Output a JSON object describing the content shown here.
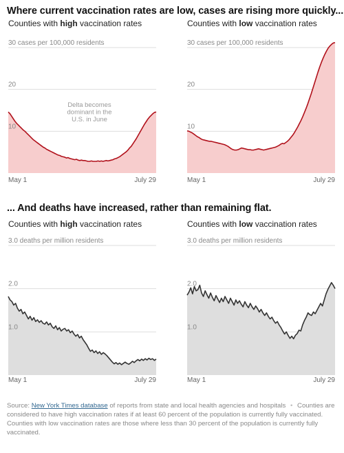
{
  "cases_section_title": "Where current vaccination rates are low, cases are rising more quickly...",
  "deaths_section_title": "... And deaths have increased, rather than remaining flat.",
  "panel_title_prefix": "Counties with ",
  "panel_title_suffix": " vaccination rates",
  "high_word": "high",
  "low_word": "low",
  "x_start_label": "May 1",
  "x_end_label": "July 29",
  "colors": {
    "cases_line": "#b0101a",
    "cases_fill": "#f7cdcd",
    "deaths_line": "#333333",
    "deaths_fill": "#dedede",
    "gridline": "#dddddd"
  },
  "chart_data": [
    {
      "type": "area",
      "metric": "cases",
      "vaccination_group": "high",
      "unit_label": "30 cases per 100,000 residents",
      "ylim": [
        0,
        30
      ],
      "yticks": [
        "20",
        "10"
      ],
      "yticks_values": [
        20,
        10
      ],
      "annotation": [
        "Delta becomes",
        "dominant in the",
        "U.S. in June"
      ],
      "x_start": "May 1",
      "x_end": "July 29",
      "values": [
        14.6,
        14.2,
        13.6,
        13.0,
        12.4,
        11.9,
        11.5,
        11.1,
        10.7,
        10.3,
        10.0,
        9.6,
        9.2,
        8.8,
        8.4,
        8.0,
        7.7,
        7.4,
        7.1,
        6.8,
        6.5,
        6.2,
        6.0,
        5.7,
        5.5,
        5.3,
        5.1,
        4.9,
        4.7,
        4.5,
        4.3,
        4.2,
        4.0,
        3.9,
        3.8,
        3.6,
        3.7,
        3.5,
        3.4,
        3.3,
        3.2,
        3.3,
        3.1,
        3.0,
        3.1,
        3.0,
        3.0,
        2.9,
        2.8,
        2.8,
        2.9,
        2.8,
        2.8,
        2.8,
        2.9,
        2.8,
        2.9,
        2.8,
        2.9,
        3.0,
        2.9,
        3.0,
        3.1,
        3.2,
        3.4,
        3.5,
        3.7,
        3.9,
        4.2,
        4.5,
        4.8,
        5.1,
        5.5,
        6.0,
        6.4,
        7.0,
        7.6,
        8.2,
        8.9,
        9.6,
        10.3,
        11.0,
        11.7,
        12.3,
        12.9,
        13.4,
        13.8,
        14.2,
        14.5,
        14.6
      ]
    },
    {
      "type": "area",
      "metric": "cases",
      "vaccination_group": "low",
      "unit_label": "30 cases per 100,000 residents",
      "ylim": [
        0,
        30
      ],
      "yticks": [
        "20",
        "10"
      ],
      "yticks_values": [
        20,
        10
      ],
      "x_start": "May 1",
      "x_end": "July 29",
      "values": [
        10.1,
        10.0,
        9.8,
        9.6,
        9.3,
        9.0,
        8.7,
        8.5,
        8.2,
        8.0,
        7.9,
        7.8,
        7.7,
        7.6,
        7.6,
        7.5,
        7.4,
        7.3,
        7.2,
        7.1,
        7.0,
        6.9,
        6.8,
        6.6,
        6.4,
        6.1,
        5.8,
        5.6,
        5.5,
        5.5,
        5.6,
        5.8,
        6.0,
        5.9,
        5.8,
        5.7,
        5.6,
        5.6,
        5.5,
        5.5,
        5.6,
        5.7,
        5.8,
        5.7,
        5.6,
        5.5,
        5.6,
        5.7,
        5.8,
        5.9,
        6.0,
        6.1,
        6.2,
        6.4,
        6.6,
        6.9,
        7.1,
        7.0,
        7.3,
        7.6,
        8.0,
        8.5,
        9.0,
        9.6,
        10.3,
        11.0,
        11.8,
        12.6,
        13.5,
        14.5,
        15.5,
        16.6,
        17.8,
        19.0,
        20.3,
        21.6,
        22.9,
        24.2,
        25.4,
        26.5,
        27.5,
        28.4,
        29.2,
        29.9,
        30.4,
        30.8,
        31.1,
        31.2
      ]
    },
    {
      "type": "area",
      "metric": "deaths",
      "vaccination_group": "high",
      "unit_label": "3.0 deaths per million residents",
      "ylim": [
        0,
        3.0
      ],
      "yticks": [
        "2.0",
        "1.0"
      ],
      "yticks_values": [
        2.0,
        1.0
      ],
      "x_start": "May 1",
      "x_end": "July 29",
      "values": [
        1.82,
        1.74,
        1.7,
        1.62,
        1.66,
        1.55,
        1.48,
        1.52,
        1.42,
        1.46,
        1.38,
        1.3,
        1.36,
        1.27,
        1.33,
        1.24,
        1.28,
        1.22,
        1.26,
        1.2,
        1.18,
        1.23,
        1.16,
        1.2,
        1.12,
        1.08,
        1.14,
        1.05,
        1.1,
        1.02,
        1.06,
        1.08,
        1.02,
        1.05,
        0.98,
        1.02,
        0.95,
        0.9,
        0.94,
        0.86,
        0.9,
        0.82,
        0.76,
        0.7,
        0.62,
        0.55,
        0.58,
        0.52,
        0.56,
        0.5,
        0.54,
        0.48,
        0.52,
        0.49,
        0.45,
        0.4,
        0.35,
        0.3,
        0.26,
        0.29,
        0.25,
        0.28,
        0.24,
        0.27,
        0.3,
        0.27,
        0.25,
        0.28,
        0.32,
        0.29,
        0.33,
        0.36,
        0.33,
        0.37,
        0.34,
        0.38,
        0.35,
        0.39,
        0.36,
        0.38,
        0.34,
        0.37
      ]
    },
    {
      "type": "area",
      "metric": "deaths",
      "vaccination_group": "low",
      "unit_label": "3.0 deaths per million residents",
      "ylim": [
        0,
        3.0
      ],
      "yticks": [
        "2.0",
        "1.0"
      ],
      "yticks_values": [
        2.0,
        1.0
      ],
      "x_start": "May 1",
      "x_end": "July 29",
      "values": [
        1.85,
        1.92,
        2.02,
        1.88,
        2.05,
        1.95,
        1.98,
        2.08,
        1.9,
        1.82,
        1.95,
        1.86,
        1.78,
        1.9,
        1.8,
        1.72,
        1.84,
        1.76,
        1.68,
        1.78,
        1.7,
        1.82,
        1.74,
        1.66,
        1.78,
        1.7,
        1.62,
        1.74,
        1.66,
        1.72,
        1.64,
        1.58,
        1.7,
        1.62,
        1.56,
        1.66,
        1.58,
        1.52,
        1.6,
        1.54,
        1.46,
        1.52,
        1.44,
        1.38,
        1.44,
        1.36,
        1.3,
        1.34,
        1.26,
        1.2,
        1.24,
        1.16,
        1.1,
        1.02,
        0.95,
        1.0,
        0.92,
        0.85,
        0.9,
        0.84,
        0.92,
        0.96,
        1.04,
        1.02,
        1.16,
        1.26,
        1.34,
        1.44,
        1.4,
        1.38,
        1.46,
        1.42,
        1.5,
        1.58,
        1.66,
        1.6,
        1.74,
        1.88,
        1.98,
        2.06,
        2.14,
        2.08,
        2.0
      ]
    }
  ],
  "footer": {
    "source_prefix": "Source: ",
    "source_link": "New York Times database",
    "source_suffix": " of reports from state and local health agencies and hospitals",
    "separator": "•",
    "note": "Counties are considered to have high vaccination rates if at least 60 percent of the population is currently fully vaccinated. Counties with low vaccination rates are those where less than 30 percent of the population is currently fully vaccinated."
  }
}
